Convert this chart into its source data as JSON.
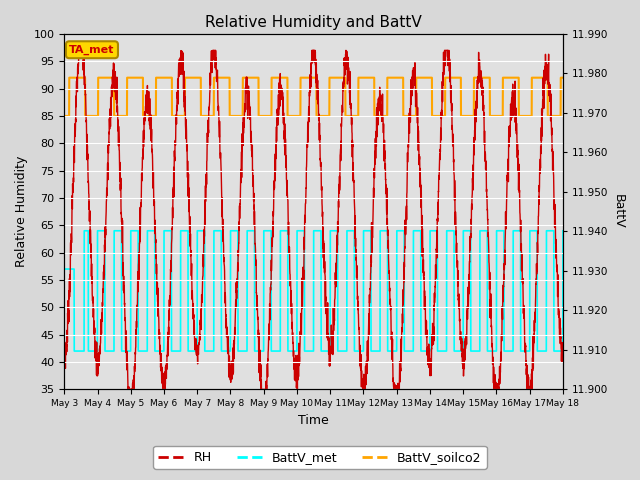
{
  "title": "Relative Humidity and BattV",
  "ylabel_left": "Relative Humidity",
  "ylabel_right": "BattV",
  "xlabel": "Time",
  "ylim_left": [
    35,
    100
  ],
  "ylim_right": [
    11.9,
    11.99
  ],
  "yticks_left": [
    35,
    40,
    45,
    50,
    55,
    60,
    65,
    70,
    75,
    80,
    85,
    90,
    95,
    100
  ],
  "yticks_right": [
    11.9,
    11.91,
    11.92,
    11.93,
    11.94,
    11.95,
    11.96,
    11.97,
    11.98,
    11.99
  ],
  "annotation_text": "TA_met",
  "annotation_box_color": "#FFD700",
  "annotation_text_color": "#CC0000",
  "bg_color": "#D8D8D8",
  "plot_bg_color": "#E0E0E0",
  "colors": {
    "RH": "#CC0000",
    "BattV_met": "#00FFFF",
    "BattV_soilco2": "#FFA500"
  },
  "legend_labels": [
    "RH",
    "BattV_met",
    "BattV_soilco2"
  ],
  "xtick_labels": [
    "May 3",
    "May 4",
    "May 5",
    "May 6",
    "May 7",
    "May 8",
    "May 9",
    "May 10",
    "May 11",
    "May 12",
    "May 13",
    "May 14",
    "May 15",
    "May 16",
    "May 17",
    "May 18"
  ],
  "figsize": [
    6.4,
    4.8
  ],
  "dpi": 100
}
